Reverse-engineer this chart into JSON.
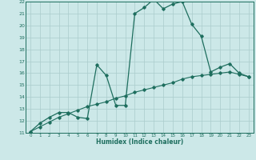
{
  "title": "",
  "xlabel": "Humidex (Indice chaleur)",
  "x": [
    0,
    1,
    2,
    3,
    4,
    5,
    6,
    7,
    8,
    9,
    10,
    11,
    12,
    13,
    14,
    15,
    16,
    17,
    18,
    19,
    20,
    21,
    22,
    23
  ],
  "humidex": [
    11.1,
    11.8,
    12.3,
    12.7,
    12.7,
    12.3,
    12.2,
    16.7,
    15.8,
    13.3,
    13.3,
    21.0,
    21.5,
    22.2,
    21.4,
    21.8,
    22.0,
    20.1,
    19.1,
    16.1,
    16.5,
    16.8,
    16.0,
    15.7
  ],
  "trend": [
    11.1,
    11.5,
    11.9,
    12.3,
    12.6,
    12.9,
    13.2,
    13.4,
    13.6,
    13.9,
    14.1,
    14.4,
    14.6,
    14.8,
    15.0,
    15.2,
    15.5,
    15.7,
    15.8,
    15.9,
    16.0,
    16.1,
    15.9,
    15.7
  ],
  "line_color": "#1e6e5e",
  "bg_color": "#cce8e8",
  "grid_color": "#aacccc",
  "ylim": [
    11,
    22
  ],
  "xlim": [
    -0.5,
    23.5
  ],
  "yticks": [
    11,
    12,
    13,
    14,
    15,
    16,
    17,
    18,
    19,
    20,
    21,
    22
  ],
  "xticks": [
    0,
    1,
    2,
    3,
    4,
    5,
    6,
    7,
    8,
    9,
    10,
    11,
    12,
    13,
    14,
    15,
    16,
    17,
    18,
    19,
    20,
    21,
    22,
    23
  ]
}
